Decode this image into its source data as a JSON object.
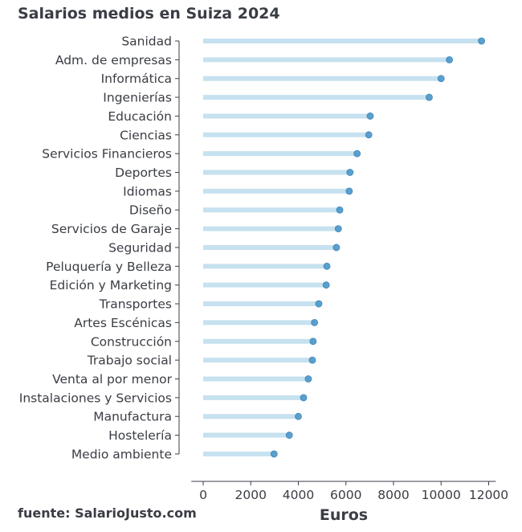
{
  "chart_data": {
    "type": "lollipop",
    "title": "Salarios medios en Suiza 2024",
    "xlabel": "Euros",
    "ylabel": "",
    "source": "fuente: SalarioJusto.com",
    "xlim": [
      -500,
      12300
    ],
    "xticks": [
      0,
      2000,
      4000,
      6000,
      8000,
      10000,
      12000
    ],
    "grid": false,
    "stem_color": "#c6e1ef",
    "point_color": "#4a97c9",
    "categories": [
      "Sanidad",
      "Adm. de empresas",
      "Informática",
      "Ingenierías",
      "Educación",
      "Ciencias",
      "Servicios Financieros",
      "Deportes",
      "Idiomas",
      "Diseño",
      "Servicios de Garaje",
      "Seguridad",
      "Peluquería y Belleza",
      "Edición y Marketing",
      "Transportes",
      "Artes Escénicas",
      "Construcción",
      "Trabajo social",
      "Venta al por menor",
      "Instalaciones y Servicios",
      "Manufactura",
      "Hostelería",
      "Medio ambiente"
    ],
    "values": [
      11700,
      10350,
      10000,
      9500,
      7020,
      6960,
      6470,
      6170,
      6140,
      5740,
      5680,
      5600,
      5200,
      5170,
      4860,
      4680,
      4620,
      4590,
      4420,
      4220,
      4000,
      3620,
      2980
    ]
  }
}
